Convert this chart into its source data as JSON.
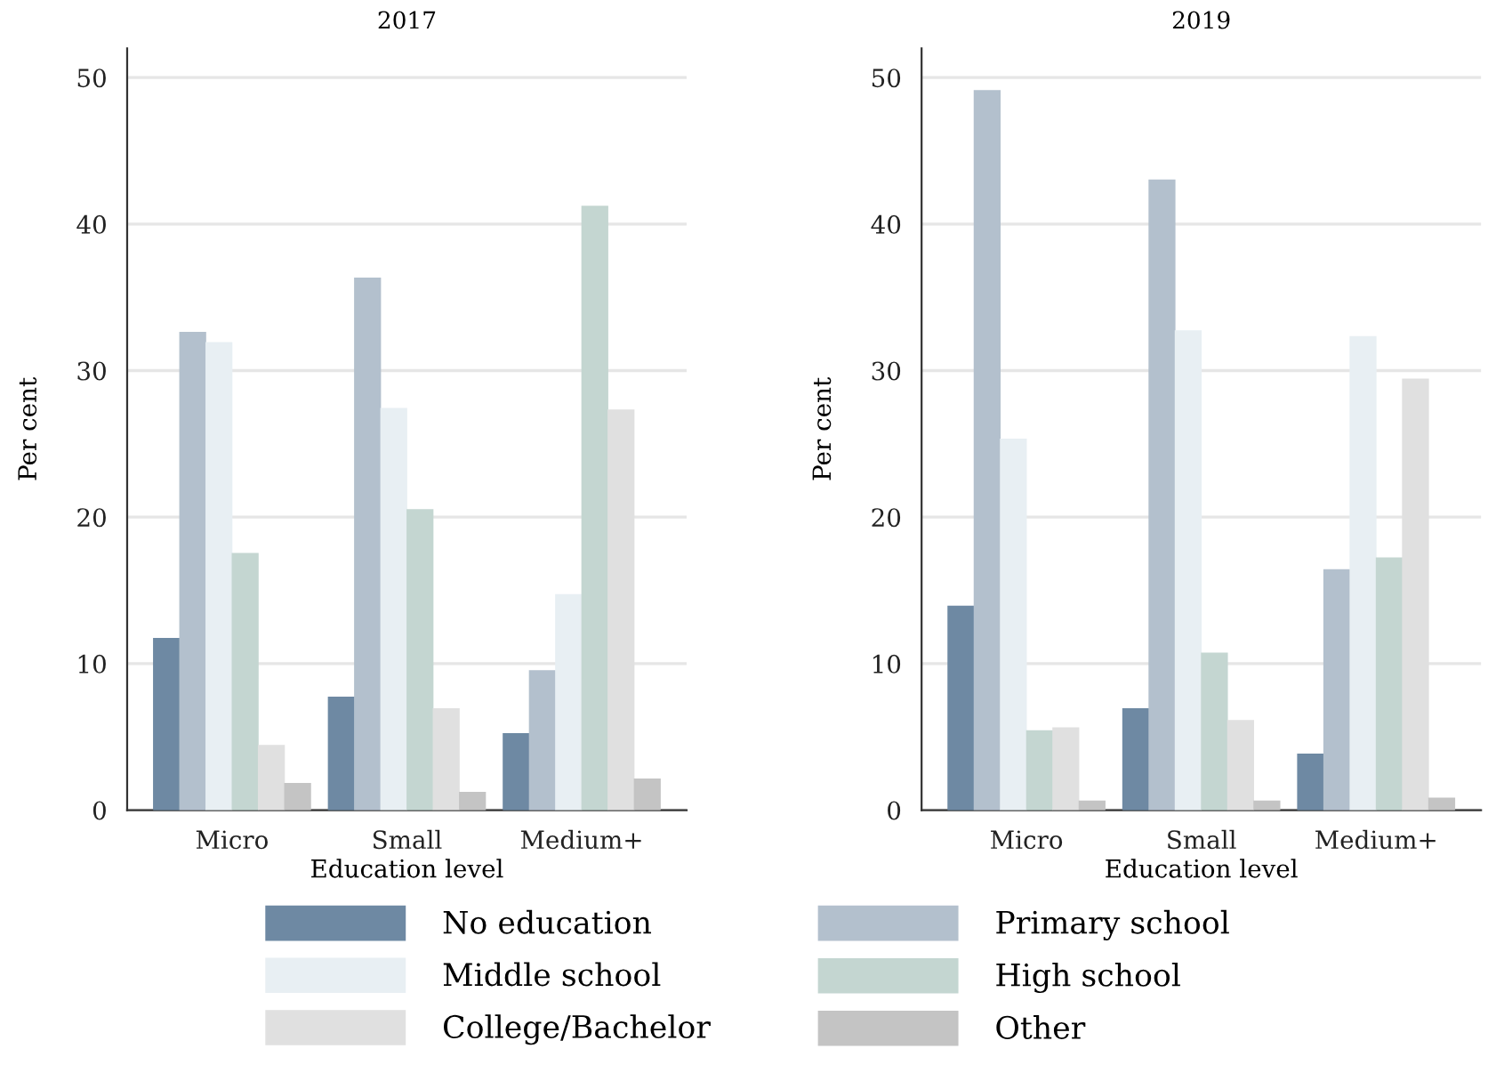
{
  "chart_data": [
    {
      "type": "bar",
      "title": "2017",
      "xlabel": "Education level",
      "ylabel": "Per cent",
      "categories": [
        "Micro",
        "Small",
        "Medium+"
      ],
      "ylim": [
        0,
        52
      ],
      "yticks": [
        0,
        10,
        20,
        30,
        40,
        50
      ],
      "grid": "y",
      "legend": "bottom",
      "series": [
        {
          "name": "No education",
          "color": "#6e89a3",
          "values": [
            11.7,
            7.7,
            5.2
          ]
        },
        {
          "name": "Primary school",
          "color": "#b3c0cd",
          "values": [
            32.6,
            36.3,
            9.5
          ]
        },
        {
          "name": "Middle school",
          "color": "#e8eff3",
          "values": [
            31.9,
            27.4,
            14.7
          ]
        },
        {
          "name": "High school",
          "color": "#c4d6d1",
          "values": [
            17.5,
            20.5,
            41.2
          ]
        },
        {
          "name": "College/Bachelor",
          "color": "#e0e0e0",
          "values": [
            4.4,
            6.9,
            27.3
          ]
        },
        {
          "name": "Other",
          "color": "#c4c4c4",
          "values": [
            1.8,
            1.2,
            2.1
          ]
        }
      ]
    },
    {
      "type": "bar",
      "title": "2019",
      "xlabel": "Education level",
      "ylabel": "Per cent",
      "categories": [
        "Micro",
        "Small",
        "Medium+"
      ],
      "ylim": [
        0,
        52
      ],
      "yticks": [
        0,
        10,
        20,
        30,
        40,
        50
      ],
      "grid": "y",
      "series": [
        {
          "color": "#6e89a3",
          "values": [
            13.9,
            6.9,
            3.8
          ]
        },
        {
          "color": "#b3c0cd",
          "values": [
            49.1,
            43.0,
            16.4
          ]
        },
        {
          "color": "#e8eff3",
          "values": [
            25.3,
            32.7,
            32.3
          ]
        },
        {
          "color": "#c4d6d1",
          "values": [
            5.4,
            10.7,
            17.2
          ]
        },
        {
          "color": "#e0e0e0",
          "values": [
            5.6,
            6.1,
            29.4
          ]
        },
        {
          "color": "#c4c4c4",
          "values": [
            0.6,
            0.6,
            0.8
          ]
        }
      ]
    }
  ]
}
